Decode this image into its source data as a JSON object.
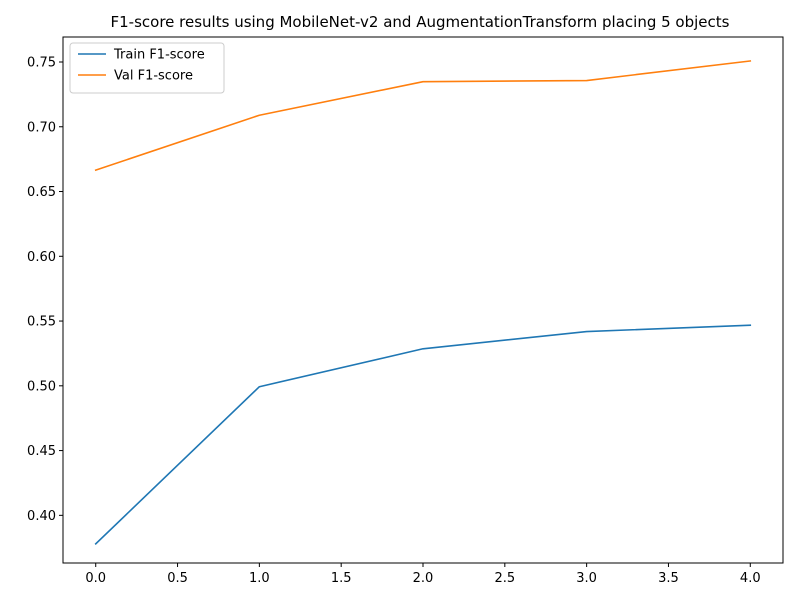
{
  "chart_data": {
    "type": "line",
    "title": "F1-score results using MobileNet-v2 and AugmentationTransform placing 5 objects",
    "xlabel": "",
    "ylabel": "",
    "x": [
      0,
      1,
      2,
      3,
      4
    ],
    "xlim": [
      -0.2,
      4.2
    ],
    "ylim": [
      0.3632,
      0.7693
    ],
    "xticks": [
      0.0,
      0.5,
      1.0,
      1.5,
      2.0,
      2.5,
      3.0,
      3.5,
      4.0
    ],
    "xtick_labels": [
      "0.0",
      "0.5",
      "1.0",
      "1.5",
      "2.0",
      "2.5",
      "3.0",
      "3.5",
      "4.0"
    ],
    "yticks": [
      0.4,
      0.45,
      0.5,
      0.55,
      0.6,
      0.65,
      0.7,
      0.75
    ],
    "ytick_labels": [
      "0.40",
      "0.45",
      "0.50",
      "0.55",
      "0.60",
      "0.65",
      "0.70",
      "0.75"
    ],
    "grid": false,
    "legend_position": "top-left",
    "series": [
      {
        "name": "Train F1-score",
        "color": "#1f77b4",
        "values": [
          0.378,
          0.4993,
          0.5286,
          0.5419,
          0.5468
        ]
      },
      {
        "name": "Val F1-score",
        "color": "#ff7f0e",
        "values": [
          0.6665,
          0.7089,
          0.7348,
          0.7357,
          0.7508
        ]
      }
    ]
  }
}
